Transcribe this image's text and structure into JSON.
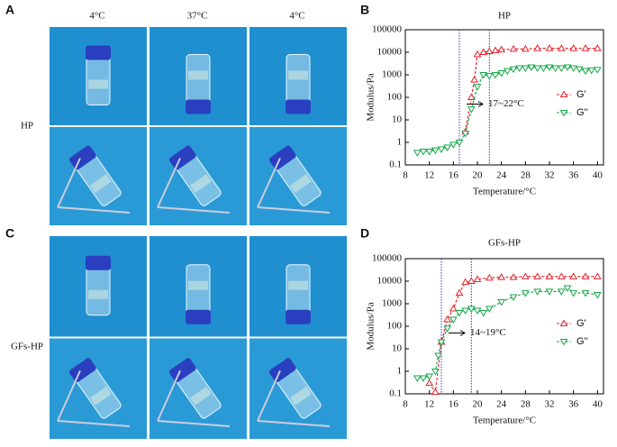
{
  "figure": {
    "photos": [
      {
        "label": "A",
        "columns": [
          "4°C",
          "37°C",
          "4°C"
        ],
        "sample": "HP"
      },
      {
        "label": "C",
        "sample": "GFs-HP"
      }
    ]
  },
  "chart_data": [
    {
      "type": "line",
      "label": "B",
      "title": "HP",
      "xlabel": "Temperature/°C",
      "ylabel": "Modulus/Pa",
      "xlim": [
        8,
        41
      ],
      "xticks": [
        8,
        12,
        16,
        20,
        24,
        28,
        32,
        36,
        40
      ],
      "ylim": [
        0.1,
        100000
      ],
      "yticks": [
        0.1,
        1,
        10,
        100,
        1000,
        10000,
        100000
      ],
      "ylog": true,
      "vlines": [
        17,
        22
      ],
      "annotation": "17~22°C",
      "legend": "right",
      "series": [
        {
          "name": "G'",
          "color": "#e8212b",
          "marker": "triangle-up",
          "x": [
            18,
            19,
            19.5,
            20,
            21,
            22,
            23,
            24,
            26,
            28,
            30,
            32,
            34,
            36,
            38,
            40
          ],
          "values": [
            3,
            100,
            600,
            8000,
            10000,
            11000,
            12000,
            13000,
            14000,
            14000,
            15000,
            15000,
            15000,
            15000,
            15000,
            15000
          ]
        },
        {
          "name": "G''",
          "color": "#18a84a",
          "marker": "triangle-down",
          "x": [
            10,
            11,
            12,
            13,
            14,
            15,
            16,
            17,
            18,
            19,
            20,
            21,
            22,
            23,
            24,
            25,
            26,
            27,
            28,
            29,
            30,
            31,
            32,
            33,
            34,
            35,
            36,
            37,
            38,
            39,
            40
          ],
          "values": [
            0.35,
            0.4,
            0.4,
            0.45,
            0.5,
            0.6,
            0.8,
            1,
            2.5,
            30,
            300,
            1000,
            900,
            1000,
            1200,
            1500,
            1800,
            2000,
            2000,
            2200,
            2000,
            2000,
            2200,
            2000,
            2000,
            2200,
            2000,
            1800,
            1500,
            1600,
            1700
          ]
        }
      ]
    },
    {
      "type": "line",
      "label": "D",
      "title": "GFs-HP",
      "xlabel": "Temperature/°C",
      "ylabel": "Modulus/Pa",
      "xlim": [
        8,
        41
      ],
      "xticks": [
        8,
        12,
        16,
        20,
        24,
        28,
        32,
        36,
        40
      ],
      "ylim": [
        0.1,
        100000
      ],
      "yticks": [
        0.1,
        1,
        10,
        100,
        1000,
        10000,
        100000
      ],
      "ylog": true,
      "vlines": [
        14,
        19
      ],
      "annotation": "14~19°C",
      "legend": "right",
      "series": [
        {
          "name": "G'",
          "color": "#e8212b",
          "marker": "triangle-up",
          "x": [
            12,
            13,
            14,
            15,
            16,
            17,
            18,
            19,
            20,
            22,
            24,
            26,
            28,
            30,
            32,
            34,
            36,
            38,
            40
          ],
          "values": [
            0.3,
            0.12,
            20,
            200,
            600,
            3000,
            9000,
            10000,
            12000,
            14000,
            15000,
            15000,
            16000,
            16000,
            16000,
            16000,
            16000,
            16000,
            16000
          ]
        },
        {
          "name": "G''",
          "color": "#18a84a",
          "marker": "triangle-down",
          "x": [
            10,
            11,
            12,
            13,
            13.5,
            14,
            15,
            16,
            17,
            18,
            19,
            20,
            21,
            22,
            24,
            26,
            28,
            30,
            32,
            34,
            35,
            36,
            38,
            40
          ],
          "values": [
            0.5,
            0.5,
            0.6,
            1,
            5,
            20,
            80,
            200,
            400,
            500,
            600,
            500,
            400,
            600,
            1200,
            2000,
            3000,
            3500,
            3500,
            3500,
            5000,
            3000,
            3000,
            2500
          ]
        }
      ]
    }
  ]
}
